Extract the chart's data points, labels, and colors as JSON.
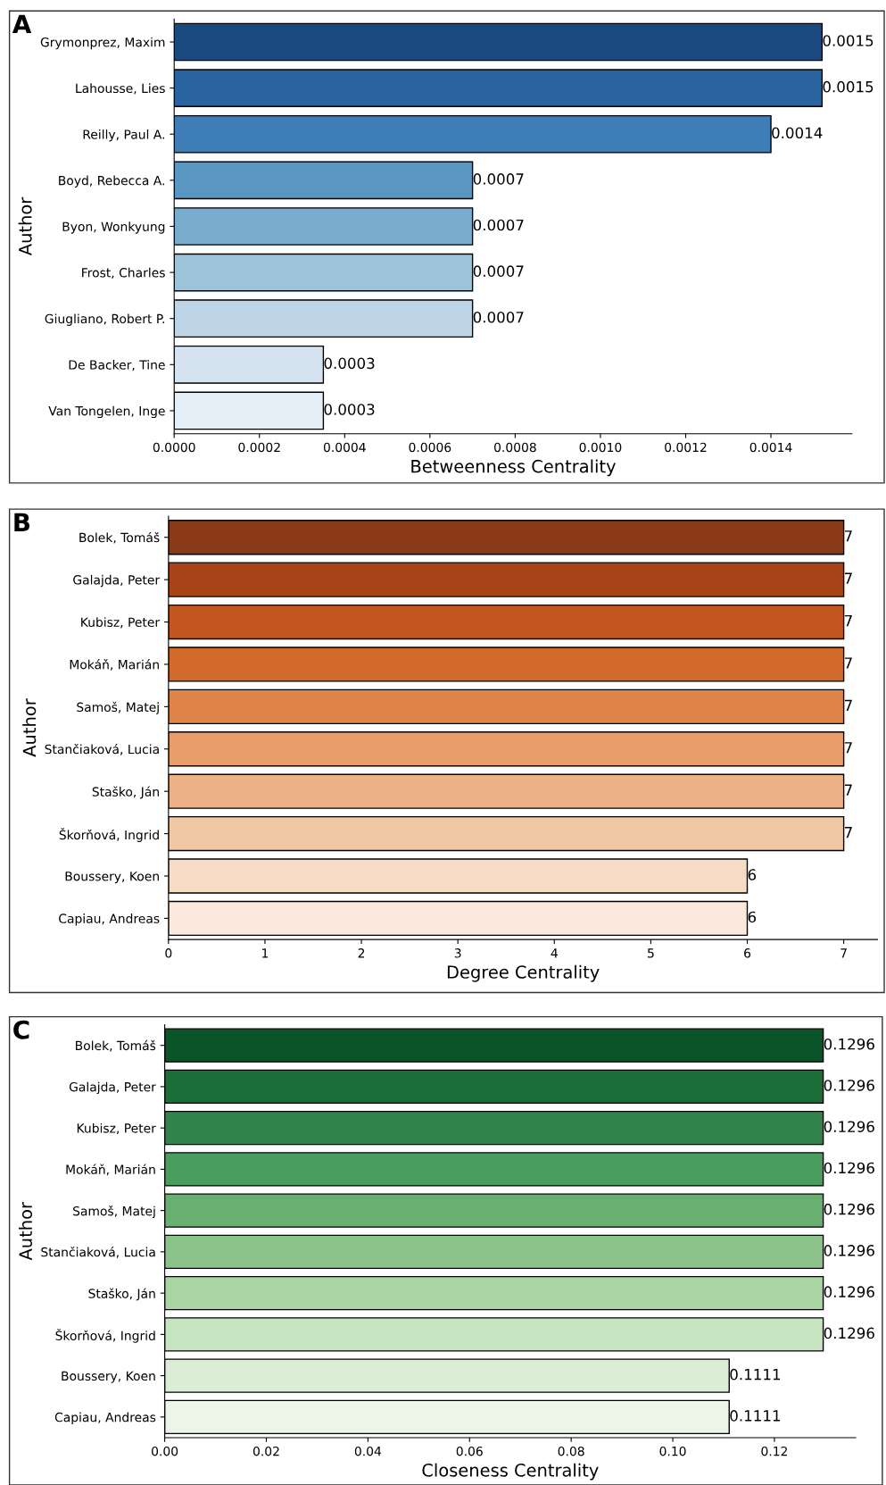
{
  "chart_data": [
    {
      "type": "bar",
      "orientation": "horizontal",
      "annotations": [
        "A"
      ],
      "ylabel": "Author",
      "xlabel": "Betweenness Centrality",
      "categories": [
        "Grymonprez, Maxim",
        "Lahousse, Lies",
        "Reilly, Paul A.",
        "Boyd, Rebecca A.",
        "Byon, Wonkyung",
        "Frost, Charles",
        "Giugliano, Robert P.",
        "De Backer, Tine",
        "Van Tongelen, Inge"
      ],
      "values": [
        0.00152,
        0.00152,
        0.0014,
        0.0007,
        0.0007,
        0.0007,
        0.0007,
        0.00035,
        0.00035
      ],
      "value_labels": [
        "0.0015",
        "0.0015",
        "0.0014",
        "0.0007",
        "0.0007",
        "0.0007",
        "0.0007",
        "0.0003",
        "0.0003"
      ],
      "colors": [
        "#1a4a80",
        "#2a64a0",
        "#3e7db8",
        "#5a96c2",
        "#79abcc",
        "#9cc3d8",
        "#bcd4e6",
        "#d5e3f0",
        "#e5eff8"
      ],
      "xlim": [
        0,
        0.00159
      ],
      "xticks": [
        {
          "value": 0,
          "label": "0.0000"
        },
        {
          "value": 0.0002,
          "label": "0.0002"
        },
        {
          "value": 0.0004,
          "label": "0.0004"
        },
        {
          "value": 0.0006,
          "label": "0.0006"
        },
        {
          "value": 0.0008,
          "label": "0.0008"
        },
        {
          "value": 0.001,
          "label": "0.0010"
        },
        {
          "value": 0.0012,
          "label": "0.0012"
        },
        {
          "value": 0.0014,
          "label": "0.0014"
        }
      ],
      "grid": false,
      "legend": false
    },
    {
      "type": "bar",
      "orientation": "horizontal",
      "annotations": [
        "B"
      ],
      "ylabel": "Author",
      "xlabel": "Degree Centrality",
      "categories": [
        "Bolek, Tomáš",
        "Galajda, Peter",
        "Kubisz, Peter",
        "Mokáň, Marián",
        "Samoš, Matej",
        "Stančiaková, Lucia",
        "Staško, Ján",
        "Škorňová, Ingrid",
        "Boussery, Koen",
        "Capiau, Andreas"
      ],
      "values": [
        7,
        7,
        7,
        7,
        7,
        7,
        7,
        7,
        6,
        6
      ],
      "data_labels": true,
      "colors": [
        "#8b3a17",
        "#a84418",
        "#c2561e",
        "#d26a2c",
        "#e0844a",
        "#e89c68",
        "#ecb184",
        "#f0c9a4",
        "#f6dcc4",
        "#fae9dc"
      ],
      "xlim": [
        0,
        7.35
      ],
      "xticks": [
        0,
        1,
        2,
        3,
        4,
        5,
        6,
        7
      ],
      "grid": false,
      "legend": false
    },
    {
      "type": "bar",
      "orientation": "horizontal",
      "annotations": [
        "C"
      ],
      "ylabel": "Author",
      "xlabel": "Closeness Centrality",
      "categories": [
        "Bolek, Tomáš",
        "Galajda, Peter",
        "Kubisz, Peter",
        "Mokáň, Marián",
        "Samoš, Matej",
        "Stančiaková, Lucia",
        "Staško, Ján",
        "Škorňová, Ingrid",
        "Boussery, Koen",
        "Capiau, Andreas"
      ],
      "values": [
        0.1296,
        0.1296,
        0.1296,
        0.1296,
        0.1296,
        0.1296,
        0.1296,
        0.1296,
        0.1111,
        0.1111
      ],
      "data_labels": true,
      "colors": [
        "#0b5429",
        "#1c6e39",
        "#33844c",
        "#4a9c5f",
        "#6aaf72",
        "#8cc38a",
        "#a8d5a1",
        "#c7e4c1",
        "#dcedd7",
        "#ebf5e8"
      ],
      "xlim": [
        0,
        0.136
      ],
      "xticks": [
        {
          "value": 0,
          "label": "0.00"
        },
        {
          "value": 0.02,
          "label": "0.02"
        },
        {
          "value": 0.04,
          "label": "0.04"
        },
        {
          "value": 0.06,
          "label": "0.06"
        },
        {
          "value": 0.08,
          "label": "0.08"
        },
        {
          "value": 0.1,
          "label": "0.10"
        },
        {
          "value": 0.12,
          "label": "0.12"
        }
      ],
      "grid": false,
      "legend": false
    }
  ]
}
